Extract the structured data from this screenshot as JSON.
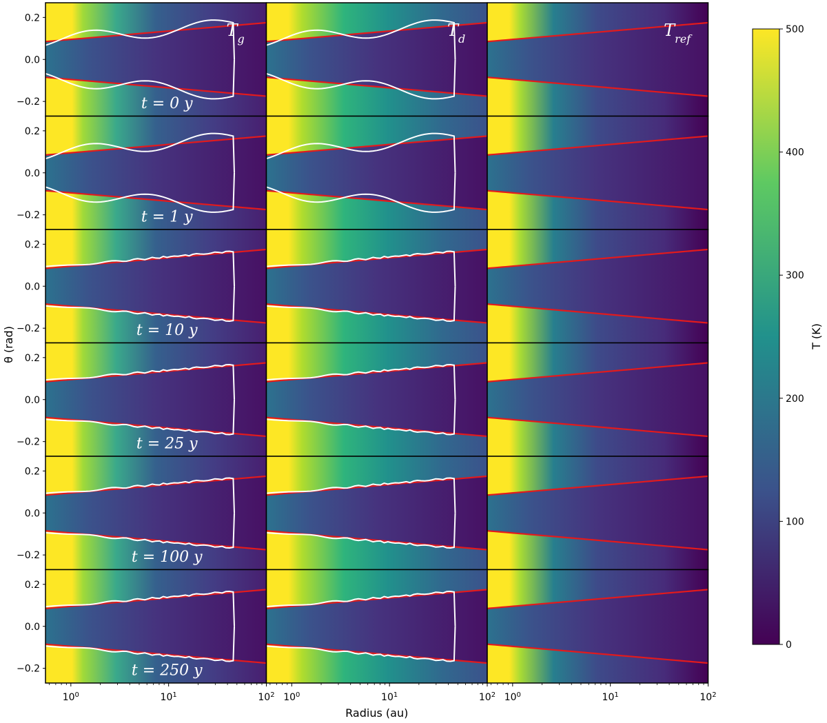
{
  "chart_data": {
    "type": "heatmap",
    "column_titles": [
      "T_g",
      "T_d",
      "T_ref"
    ],
    "row_labels": [
      "t = 0 y",
      "t = 1 y",
      "t = 10 y",
      "t = 25 y",
      "t = 100 y",
      "t = 250 y"
    ],
    "xlabel": "Radius (au)",
    "ylabel": "θ (rad)",
    "xscale": "log",
    "xlim": [
      0.55,
      100
    ],
    "ylim": [
      -0.27,
      0.27
    ],
    "x_ticks": [
      1,
      10,
      100
    ],
    "x_tick_labels": [
      "10^0",
      "10^1",
      "10^2"
    ],
    "y_ticks": [
      0.2,
      0.0,
      -0.2
    ],
    "y_tick_labels": [
      "0.2",
      "0.0",
      "−0.2"
    ],
    "colorbar": {
      "label": "T (K)",
      "min": 0,
      "max": 500,
      "ticks": [
        0,
        100,
        200,
        300,
        400,
        500
      ],
      "tick_labels": [
        "0",
        "100",
        "200",
        "300",
        "400",
        "500"
      ],
      "colormap": [
        "#440154",
        "#3b528b",
        "#21918c",
        "#5ec962",
        "#fde725"
      ]
    },
    "colors": {
      "red_line": "#e31a1c",
      "white_line": "#ffffff",
      "hot": "#fde725"
    }
  }
}
